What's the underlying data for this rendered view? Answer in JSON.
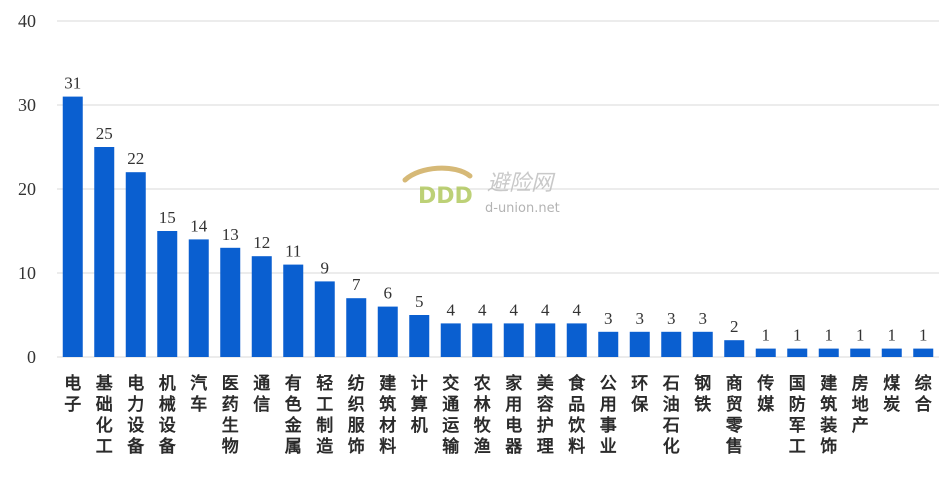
{
  "chart_data": {
    "type": "bar",
    "categories": [
      "电子",
      "基础化工",
      "电力设备",
      "机械设备",
      "汽车",
      "医药生物",
      "通信",
      "有色金属",
      "轻工制造",
      "纺织服饰",
      "建筑材料",
      "计算机",
      "交通运输",
      "农林牧渔",
      "家用电器",
      "美容护理",
      "食品饮料",
      "公用事业",
      "环保",
      "石油石化",
      "钢铁",
      "商贸零售",
      "传媒",
      "国防军工",
      "建筑装饰",
      "房地产",
      "煤炭",
      "综合"
    ],
    "values": [
      31,
      25,
      22,
      15,
      14,
      13,
      12,
      11,
      9,
      7,
      6,
      5,
      4,
      4,
      4,
      4,
      4,
      3,
      3,
      3,
      3,
      2,
      1,
      1,
      1,
      1,
      1,
      1
    ],
    "yticks": [
      "0",
      "10",
      "20",
      "30",
      "40"
    ],
    "ylim": [
      0,
      40
    ],
    "grid": true,
    "bar_color": "#0A5FD0",
    "grid_color": "#d9d9d9",
    "title": "",
    "xlabel": "",
    "ylabel": ""
  },
  "watermark": {
    "logo_text": "DDD",
    "cn_text": "避险网",
    "url_text": "d-union.net"
  }
}
